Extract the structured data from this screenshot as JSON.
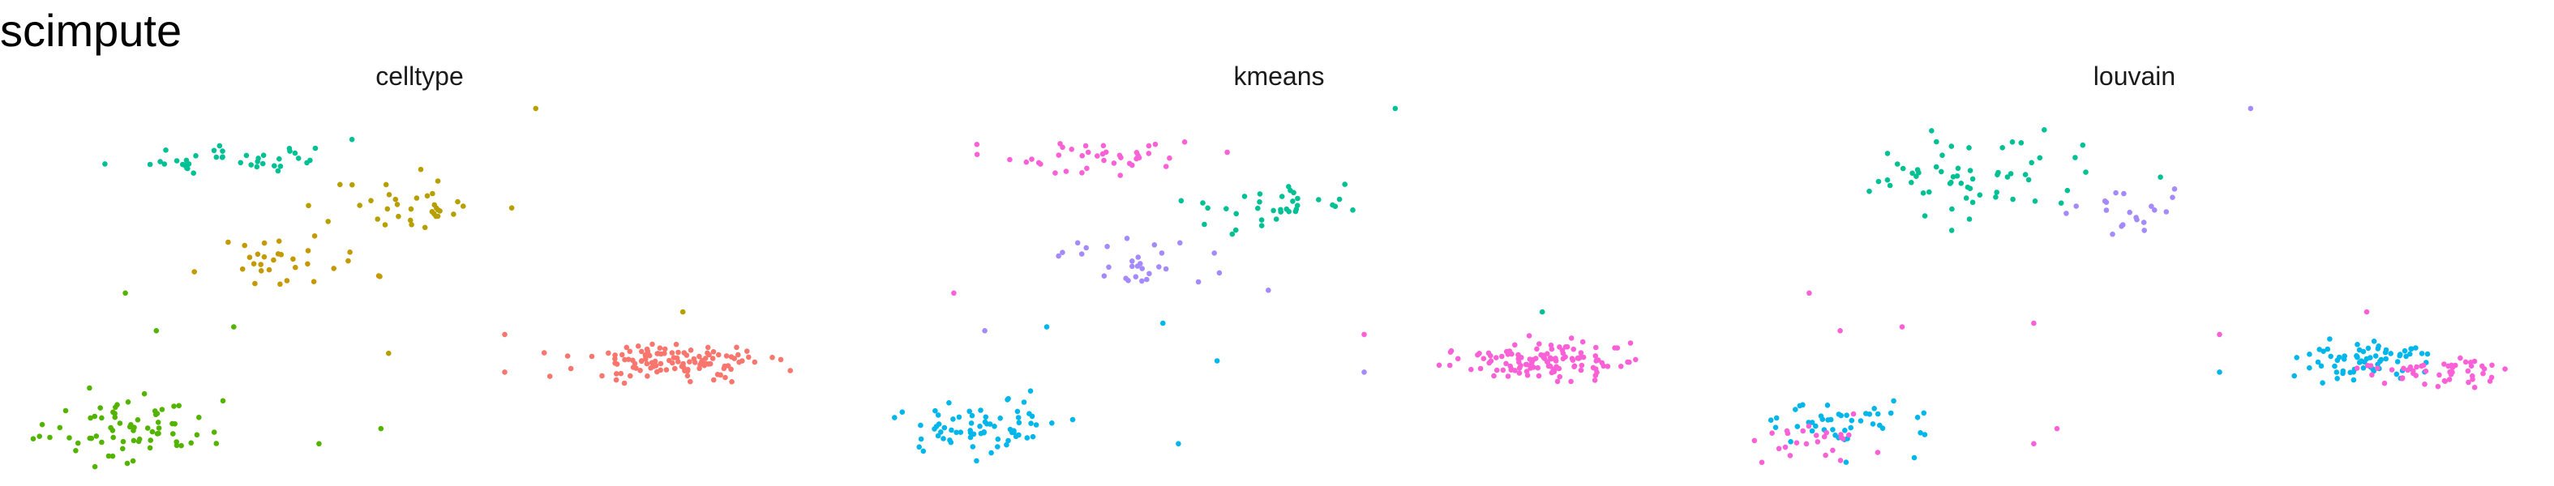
{
  "figure": {
    "title": "scimpute"
  },
  "colors": {
    "red": "#F8766D",
    "olive": "#B79F00",
    "mustard": "#C49A00",
    "green": "#53B400",
    "teal": "#00C094",
    "cyan": "#00B6EB",
    "purple": "#A58AFF",
    "pink": "#FB61D7"
  },
  "chart_data": [
    {
      "type": "scatter",
      "title": "celltype",
      "xlabel": "",
      "ylabel": "",
      "grid": false,
      "legend": "none",
      "xlim": [
        0,
        100
      ],
      "ylim": [
        0,
        100
      ],
      "clusters": [
        {
          "label": "teal",
          "color": "#00C094",
          "center": [
            26,
            84
          ],
          "spread": [
            11,
            4
          ],
          "n": 40
        },
        {
          "label": "olive",
          "color": "#B79F00",
          "center": [
            49,
            71
          ],
          "spread": [
            9,
            6
          ],
          "n": 35
        },
        {
          "label": "mustard",
          "color": "#C49A00",
          "center": [
            33,
            56
          ],
          "spread": [
            9,
            6
          ],
          "n": 30
        },
        {
          "label": "red",
          "color": "#F8766D",
          "center": [
            83,
            30
          ],
          "spread": [
            10,
            4
          ],
          "n": 120
        },
        {
          "label": "green",
          "color": "#53B400",
          "center": [
            12,
            12
          ],
          "spread": [
            9,
            7
          ],
          "n": 70
        }
      ],
      "outliers": [
        {
          "x": 12,
          "y": 48,
          "color": "#53B400"
        },
        {
          "x": 16,
          "y": 38,
          "color": "#53B400"
        },
        {
          "x": 26,
          "y": 39,
          "color": "#53B400"
        },
        {
          "x": 45,
          "y": 12,
          "color": "#53B400"
        },
        {
          "x": 37,
          "y": 8,
          "color": "#53B400"
        },
        {
          "x": 65,
          "y": 97,
          "color": "#B79F00"
        },
        {
          "x": 84,
          "y": 43,
          "color": "#B79F00"
        },
        {
          "x": 61,
          "y": 37,
          "color": "#F8766D"
        },
        {
          "x": 61,
          "y": 27,
          "color": "#F8766D"
        },
        {
          "x": 46,
          "y": 32,
          "color": "#B79F00"
        }
      ],
      "seed": 11
    },
    {
      "type": "scatter",
      "title": "kmeans",
      "xlabel": "",
      "ylabel": "",
      "grid": false,
      "legend": "none",
      "xlim": [
        0,
        100
      ],
      "ylim": [
        0,
        100
      ],
      "clusters": [
        {
          "label": "pink",
          "color": "#FB61D7",
          "center": [
            26,
            84
          ],
          "spread": [
            11,
            4
          ],
          "n": 40
        },
        {
          "label": "purple",
          "color": "#A58AFF",
          "center": [
            33,
            56
          ],
          "spread": [
            9,
            6
          ],
          "n": 30
        },
        {
          "label": "teal",
          "color": "#00C094",
          "center": [
            50,
            71
          ],
          "spread": [
            9,
            6
          ],
          "n": 35
        },
        {
          "label": "pink",
          "color": "#FB61D7",
          "center": [
            83,
            30
          ],
          "spread": [
            10,
            4
          ],
          "n": 120
        },
        {
          "label": "cyan",
          "color": "#00B6EB",
          "center": [
            12,
            12
          ],
          "spread": [
            9,
            7
          ],
          "n": 70
        }
      ],
      "outliers": [
        {
          "x": 8,
          "y": 48,
          "color": "#FB61D7"
        },
        {
          "x": 12,
          "y": 38,
          "color": "#A58AFF"
        },
        {
          "x": 20,
          "y": 39,
          "color": "#00B6EB"
        },
        {
          "x": 35,
          "y": 40,
          "color": "#00B6EB"
        },
        {
          "x": 37,
          "y": 8,
          "color": "#00B6EB"
        },
        {
          "x": 65,
          "y": 97,
          "color": "#00C094"
        },
        {
          "x": 84,
          "y": 43,
          "color": "#00C094"
        },
        {
          "x": 61,
          "y": 27,
          "color": "#A58AFF"
        },
        {
          "x": 61,
          "y": 37,
          "color": "#FB61D7"
        },
        {
          "x": 42,
          "y": 30,
          "color": "#00B6EB"
        }
      ],
      "seed": 11
    },
    {
      "type": "scatter",
      "title": "louvain",
      "xlabel": "",
      "ylabel": "",
      "grid": false,
      "legend": "none",
      "xlim": [
        0,
        100
      ],
      "ylim": [
        0,
        100
      ],
      "clusters": [
        {
          "label": "teal",
          "color": "#00C094",
          "center": [
            30,
            78
          ],
          "spread": [
            12,
            8
          ],
          "n": 60
        },
        {
          "label": "purple",
          "color": "#A58AFF",
          "center": [
            50,
            70
          ],
          "spread": [
            7,
            5
          ],
          "n": 20
        },
        {
          "label": "cyan",
          "color": "#00B6EB",
          "center": [
            80,
            30
          ],
          "spread": [
            7,
            4
          ],
          "n": 70
        },
        {
          "label": "pink",
          "color": "#FB61D7",
          "center": [
            88,
            27
          ],
          "spread": [
            8,
            4
          ],
          "n": 50
        },
        {
          "label": "cyan",
          "color": "#00B6EB",
          "center": [
            12,
            14
          ],
          "spread": [
            9,
            7
          ],
          "n": 45
        },
        {
          "label": "pink",
          "color": "#FB61D7",
          "center": [
            8,
            9
          ],
          "spread": [
            6,
            5
          ],
          "n": 25
        }
      ],
      "outliers": [
        {
          "x": 8,
          "y": 48,
          "color": "#FB61D7"
        },
        {
          "x": 12,
          "y": 38,
          "color": "#FB61D7"
        },
        {
          "x": 20,
          "y": 39,
          "color": "#FB61D7"
        },
        {
          "x": 37,
          "y": 40,
          "color": "#FB61D7"
        },
        {
          "x": 37,
          "y": 8,
          "color": "#FB61D7"
        },
        {
          "x": 65,
          "y": 97,
          "color": "#A58AFF"
        },
        {
          "x": 80,
          "y": 43,
          "color": "#FB61D7"
        },
        {
          "x": 61,
          "y": 27,
          "color": "#00B6EB"
        },
        {
          "x": 61,
          "y": 37,
          "color": "#FB61D7"
        },
        {
          "x": 40,
          "y": 12,
          "color": "#FB61D7"
        }
      ],
      "seed": 11
    }
  ]
}
